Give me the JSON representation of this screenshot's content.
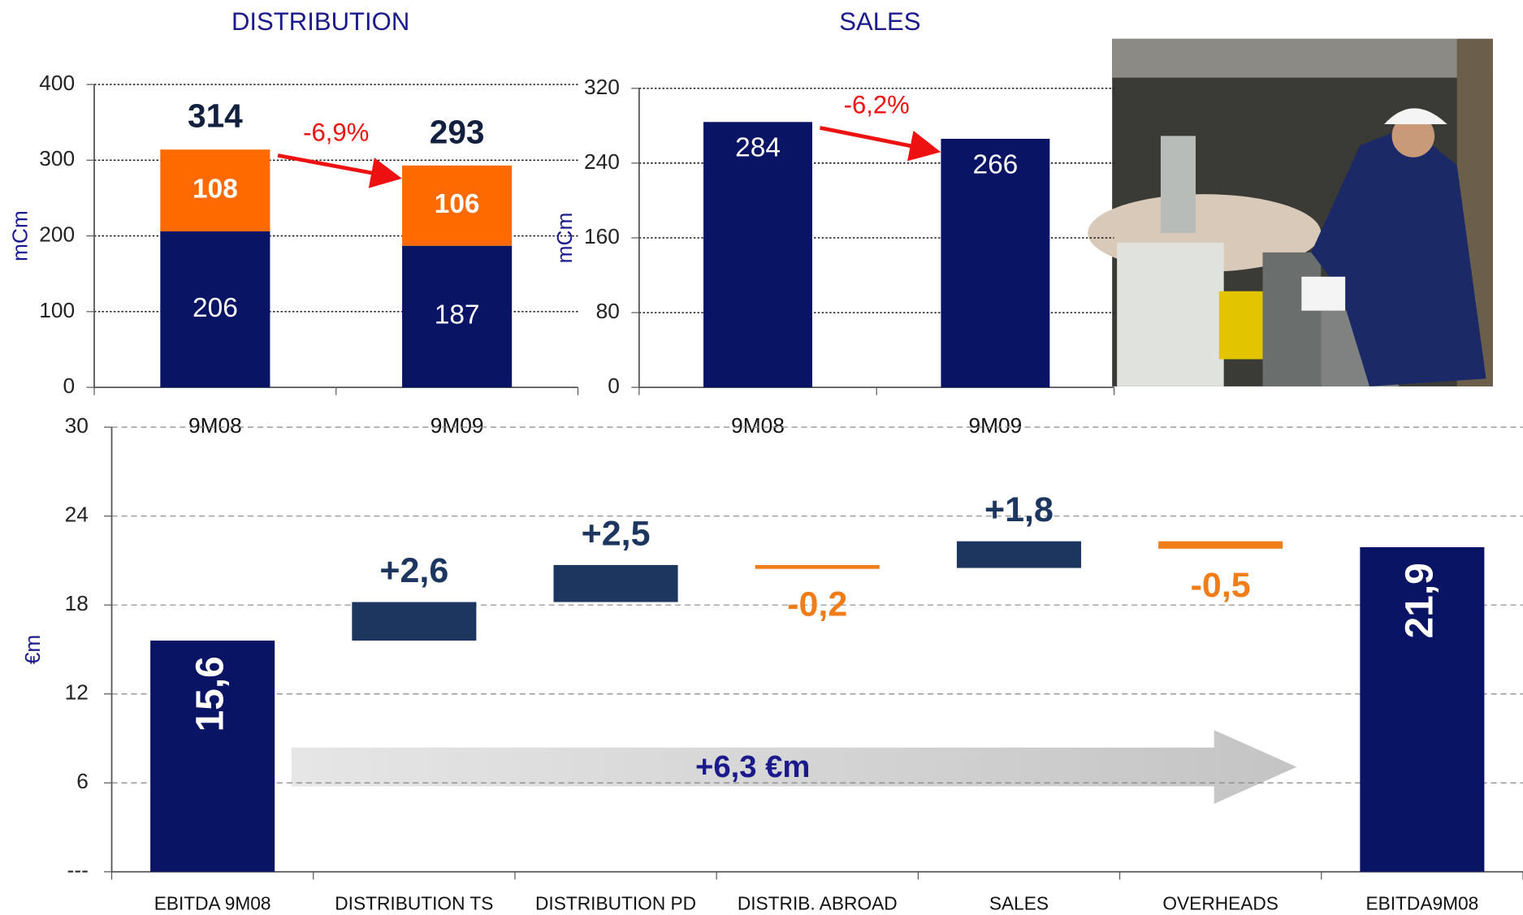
{
  "chart_data": [
    {
      "type": "bar",
      "stacked": true,
      "title": "DISTRIBUTION",
      "y_label": "mCm",
      "categories": [
        "9M08",
        "9M09"
      ],
      "series": [
        {
          "color": "#0a1464",
          "values": [
            206,
            187
          ]
        },
        {
          "color": "#ff6a00",
          "values": [
            108,
            106
          ]
        }
      ],
      "totals": [
        314,
        293
      ],
      "annotation": "-6,9%",
      "ylim": [
        0,
        400
      ],
      "yticks": [
        0,
        100,
        200,
        300,
        400
      ],
      "grid": true
    },
    {
      "type": "bar",
      "title": "SALES",
      "y_label": "mCm",
      "categories": [
        "9M08",
        "9M09"
      ],
      "values": [
        284,
        266
      ],
      "color": "#0a1464",
      "annotation": "-6,2%",
      "ylim": [
        0,
        320
      ],
      "yticks": [
        0,
        80,
        160,
        240,
        320
      ],
      "grid": true
    },
    {
      "type": "waterfall",
      "y_label": "€m",
      "categories": [
        "EBITDA 9M08",
        "DISTRIBUTION TS",
        "DISTRIBUTION PD",
        "DISTRIB. ABROAD",
        "SALES",
        "OVERHEADS",
        "EBITDA9M08"
      ],
      "values": [
        15.6,
        2.6,
        2.5,
        -0.2,
        1.8,
        -0.5,
        21.9
      ],
      "value_labels": [
        "15,6",
        "+2,6",
        "+2,5",
        "-0,2",
        "+1,8",
        "-0,5",
        "21,9"
      ],
      "measures": [
        "absolute",
        "relative",
        "relative",
        "relative",
        "relative",
        "relative",
        "absolute"
      ],
      "colors": {
        "absolute": "#0a1464",
        "increase": "#1c3660",
        "decrease": "#f07d1a"
      },
      "annotation": "+6,3 €m",
      "ylim": [
        0,
        30
      ],
      "yticks": [
        {
          "value": 0,
          "label": "---"
        },
        6,
        12,
        18,
        24,
        30
      ],
      "grid": true
    }
  ]
}
